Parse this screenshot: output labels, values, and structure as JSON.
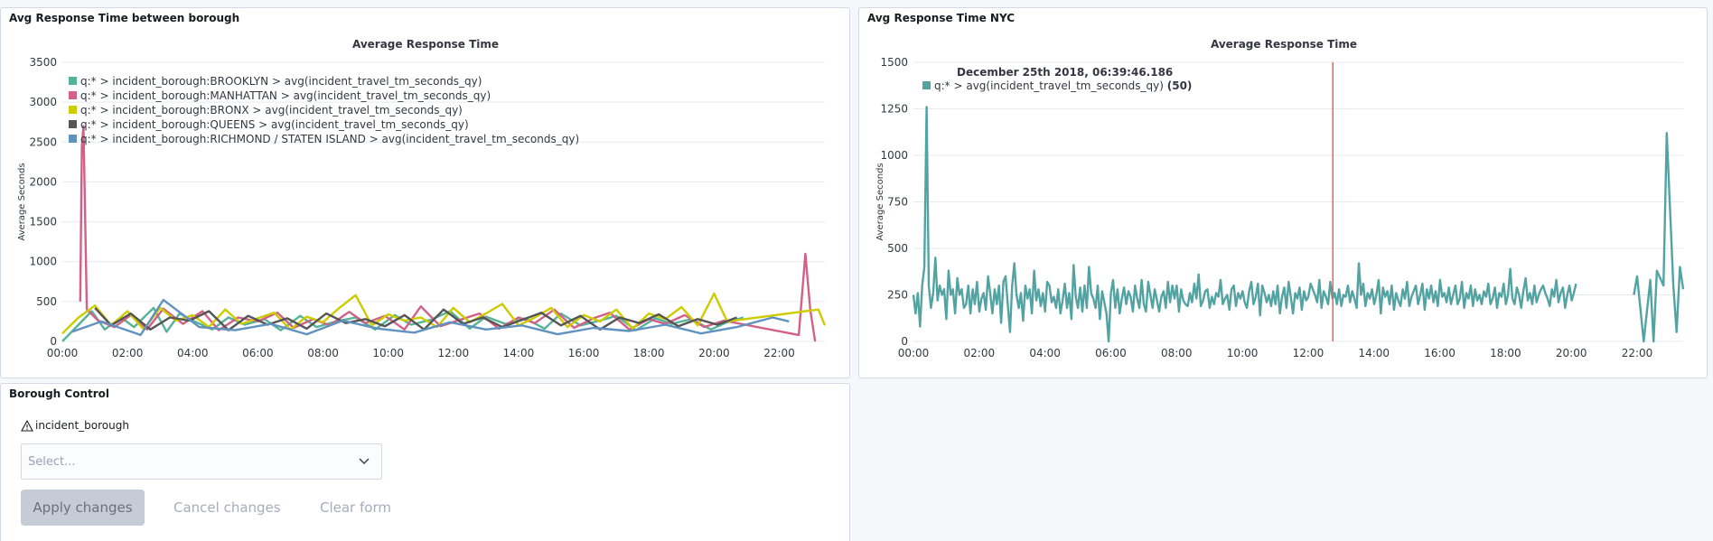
{
  "panels": {
    "borough_chart": {
      "title": "Avg Response Time between borough"
    },
    "nyc_chart": {
      "title": "Avg Response Time NYC"
    },
    "control": {
      "title": "Borough Control",
      "field_label": "incident_borough",
      "select_placeholder": "Select...",
      "apply_label": "Apply changes",
      "cancel_label": "Cancel changes",
      "clear_label": "Clear form"
    }
  },
  "chart_data": [
    {
      "type": "line",
      "title": "Average Response Time",
      "ylabel": "Average Seconds",
      "xlabel": "",
      "x_ticks": [
        "00:00",
        "02:00",
        "04:00",
        "06:00",
        "08:00",
        "10:00",
        "12:00",
        "14:00",
        "16:00",
        "18:00",
        "20:00",
        "22:00"
      ],
      "y_ticks": [
        0,
        500,
        1000,
        1500,
        2000,
        2500,
        3000,
        3500
      ],
      "ylim": [
        0,
        3500
      ],
      "xlim_hours": [
        0,
        23.4
      ],
      "grid": true,
      "legend_position": "top-left",
      "series": [
        {
          "name": "q:* > incident_borough:BROOKLYN > avg(incident_travel_tm_seconds_qy)",
          "color": "#54b399",
          "x": [
            0.0,
            0.9,
            1.3,
            1.8,
            2.2,
            2.8,
            3.2,
            3.6,
            4.0,
            4.6,
            5.1,
            5.6,
            6.2,
            6.7,
            7.3,
            7.8,
            8.4,
            9.0,
            9.6,
            10.2,
            10.7,
            11.3,
            11.9,
            12.5,
            13.0,
            13.6,
            14.2,
            14.8,
            15.3,
            15.9,
            16.5,
            17.0,
            17.6,
            18.2,
            18.7,
            19.3,
            19.9,
            20.4,
            20.9
          ],
          "y": [
            0,
            380,
            150,
            300,
            180,
            420,
            120,
            350,
            260,
            150,
            300,
            210,
            280,
            140,
            320,
            180,
            250,
            300,
            150,
            330,
            210,
            270,
            380,
            160,
            310,
            220,
            290,
            160,
            350,
            200,
            260,
            320,
            140,
            290,
            220,
            280,
            150,
            240,
            300
          ]
        },
        {
          "name": "q:* > incident_borough:MANHATTAN > avg(incident_travel_tm_seconds_qy)",
          "color": "#d36086",
          "x": [
            0.55,
            0.6,
            0.65,
            0.75,
            1.1,
            1.6,
            2.1,
            2.6,
            3.1,
            3.7,
            4.3,
            4.8,
            5.4,
            6.0,
            6.6,
            7.1,
            7.7,
            8.2,
            8.8,
            9.3,
            9.9,
            10.5,
            11.0,
            11.6,
            12.2,
            12.8,
            13.4,
            14.0,
            14.5,
            15.1,
            15.7,
            16.3,
            16.8,
            17.4,
            18.0,
            18.5,
            19.1,
            19.7,
            20.3,
            22.6,
            22.8,
            22.95,
            23.1
          ],
          "y": [
            500,
            2450,
            2700,
            400,
            260,
            180,
            330,
            150,
            410,
            220,
            380,
            140,
            300,
            250,
            360,
            170,
            280,
            200,
            370,
            230,
            320,
            150,
            440,
            190,
            270,
            350,
            160,
            300,
            230,
            400,
            170,
            290,
            360,
            150,
            280,
            220,
            330,
            180,
            260,
            80,
            1100,
            400,
            0
          ]
        },
        {
          "name": "q:* > incident_borough:BRONX > avg(incident_travel_tm_seconds_qy)",
          "color": "#cccc00",
          "x": [
            0.0,
            0.5,
            1.0,
            1.5,
            2.0,
            2.5,
            3.0,
            3.5,
            4.0,
            4.5,
            5.0,
            5.5,
            6.0,
            6.5,
            7.0,
            7.5,
            8.0,
            8.5,
            9.0,
            9.5,
            10.0,
            10.5,
            11.0,
            11.5,
            12.0,
            12.5,
            13.0,
            13.5,
            14.0,
            14.5,
            15.0,
            15.5,
            16.0,
            16.5,
            17.0,
            17.5,
            18.0,
            18.5,
            19.0,
            19.5,
            20.0,
            20.4,
            23.2,
            23.4
          ],
          "y": [
            100,
            300,
            450,
            200,
            380,
            150,
            420,
            260,
            330,
            180,
            400,
            220,
            290,
            360,
            150,
            310,
            240,
            420,
            580,
            200,
            340,
            260,
            300,
            180,
            420,
            240,
            350,
            470,
            200,
            300,
            420,
            180,
            330,
            250,
            400,
            160,
            350,
            280,
            430,
            200,
            600,
            250,
            400,
            200
          ]
        },
        {
          "name": "q:* > incident_borough:QUEENS > avg(incident_travel_tm_seconds_qy)",
          "color": "#555555",
          "x": [
            1.0,
            1.5,
            2.1,
            2.7,
            3.3,
            3.9,
            4.5,
            5.1,
            5.7,
            6.3,
            6.9,
            7.5,
            8.1,
            8.7,
            9.3,
            9.9,
            10.5,
            11.1,
            11.7,
            12.3,
            12.9,
            13.5,
            14.1,
            14.7,
            15.3,
            15.9,
            16.5,
            17.1,
            17.7,
            18.3,
            18.9,
            19.5,
            20.1,
            20.7
          ],
          "y": [
            420,
            200,
            350,
            150,
            300,
            260,
            380,
            140,
            320,
            210,
            290,
            160,
            350,
            230,
            280,
            190,
            330,
            150,
            400,
            220,
            300,
            180,
            270,
            360,
            200,
            320,
            150,
            300,
            230,
            340,
            190,
            280,
            210,
            300
          ]
        },
        {
          "name": "q:* > incident_borough:RICHMOND / STATEN ISLAND > avg(incident_travel_tm_seconds_qy)",
          "color": "#6092c0",
          "x": [
            0.3,
            1.2,
            2.4,
            3.1,
            4.2,
            5.3,
            6.4,
            7.5,
            8.6,
            9.7,
            10.8,
            11.9,
            13.0,
            14.1,
            15.2,
            16.3,
            17.4,
            18.5,
            19.6,
            20.7,
            21.8,
            22.3
          ],
          "y": [
            120,
            250,
            80,
            520,
            180,
            140,
            220,
            90,
            260,
            160,
            110,
            240,
            150,
            200,
            90,
            170,
            130,
            210,
            100,
            180,
            300,
            250
          ]
        }
      ]
    },
    {
      "type": "line",
      "title": "Average Response Time",
      "ylabel": "Average Seconds",
      "xlabel": "",
      "x_ticks": [
        "00:00",
        "02:00",
        "04:00",
        "06:00",
        "08:00",
        "10:00",
        "12:00",
        "14:00",
        "16:00",
        "18:00",
        "20:00",
        "22:00"
      ],
      "y_ticks": [
        0,
        250,
        500,
        750,
        1000,
        1250,
        1500
      ],
      "ylim": [
        0,
        1500
      ],
      "xlim_hours": [
        0,
        23.4
      ],
      "grid": true,
      "legend_position": "top-left",
      "tooltip": {
        "time": "December 25th 2018, 06:39:46.186",
        "series": "q:* > avg(incident_travel_tm_seconds_qy)",
        "count": "(50)",
        "x_hour": 12.75
      },
      "series": [
        {
          "name": "q:* > avg(incident_travel_tm_seconds_qy)",
          "color": "#54a3a3",
          "values_start_hour": 0,
          "values_step_hours": 0.0667,
          "values": [
            250,
            150,
            260,
            80,
            300,
            400,
            1260,
            300,
            180,
            260,
            450,
            220,
            300,
            250,
            280,
            120,
            380,
            250,
            280,
            150,
            340,
            250,
            280,
            180,
            200,
            300,
            150,
            280,
            200,
            320,
            160,
            230,
            260,
            170,
            350,
            260,
            150,
            280,
            200,
            300,
            100,
            320,
            350,
            200,
            50,
            300,
            420,
            250,
            180,
            260,
            110,
            300,
            230,
            280,
            150,
            380,
            220,
            280,
            190,
            260,
            160,
            320,
            300,
            210,
            240,
            180,
            280,
            150,
            220,
            310,
            180,
            260,
            120,
            410,
            240,
            180,
            290,
            160,
            300,
            180,
            400,
            260,
            230,
            180,
            300,
            120,
            270,
            210,
            150,
            0,
            260,
            330,
            180,
            280,
            150,
            230,
            290,
            200,
            270,
            240,
            160,
            300,
            230,
            180,
            330,
            200,
            160,
            320,
            250,
            180,
            280,
            220,
            160,
            240,
            270,
            180,
            320,
            210,
            300,
            230,
            300,
            160,
            280,
            220,
            200,
            190,
            260,
            210,
            310,
            230,
            360,
            190,
            220,
            270,
            280,
            180,
            240,
            200,
            260,
            240,
            330,
            200,
            230,
            250,
            170,
            280,
            300,
            190,
            260,
            230,
            270,
            210,
            180,
            270,
            320,
            200,
            240,
            310,
            140,
            300,
            260,
            210,
            250,
            190,
            270,
            200,
            300,
            150,
            240,
            290,
            180,
            320,
            240,
            150,
            260,
            230,
            290,
            170,
            270,
            220,
            240,
            310,
            280,
            250,
            210,
            330,
            180,
            270,
            240,
            200,
            320,
            230,
            260,
            200,
            280,
            190,
            250,
            240,
            300,
            210,
            270,
            230,
            180,
            420,
            250,
            310,
            190,
            260,
            230,
            280,
            200,
            250,
            330,
            150,
            290,
            240,
            270,
            200,
            300,
            170,
            260,
            220,
            190,
            280,
            230,
            320,
            190,
            240,
            270,
            300,
            200,
            250,
            310,
            170,
            280,
            230,
            300,
            210,
            270,
            190,
            330,
            240,
            260,
            210,
            290,
            200,
            250,
            300,
            200,
            230,
            320,
            180,
            260,
            230,
            300,
            190,
            280,
            220,
            250,
            200,
            270,
            240,
            310,
            200,
            230,
            290,
            180,
            260,
            240,
            310,
            200,
            250,
            390,
            230,
            200,
            290,
            250,
            180,
            270,
            340,
            220,
            260,
            200,
            300,
            210,
            250,
            280,
            300,
            260,
            230,
            190,
            280,
            240,
            330,
            210,
            260,
            290,
            180,
            250,
            300,
            220,
            260,
            310
          ]
        },
        {
          "name": "",
          "color": "#54a3a3",
          "x": [
            21.9,
            22.0,
            22.2,
            22.4,
            22.5,
            22.6,
            22.8,
            22.9,
            23.1,
            23.2,
            23.3,
            23.4
          ],
          "y": [
            250,
            350,
            0,
            330,
            0,
            380,
            300,
            1120,
            300,
            50,
            400,
            280
          ]
        }
      ]
    }
  ]
}
